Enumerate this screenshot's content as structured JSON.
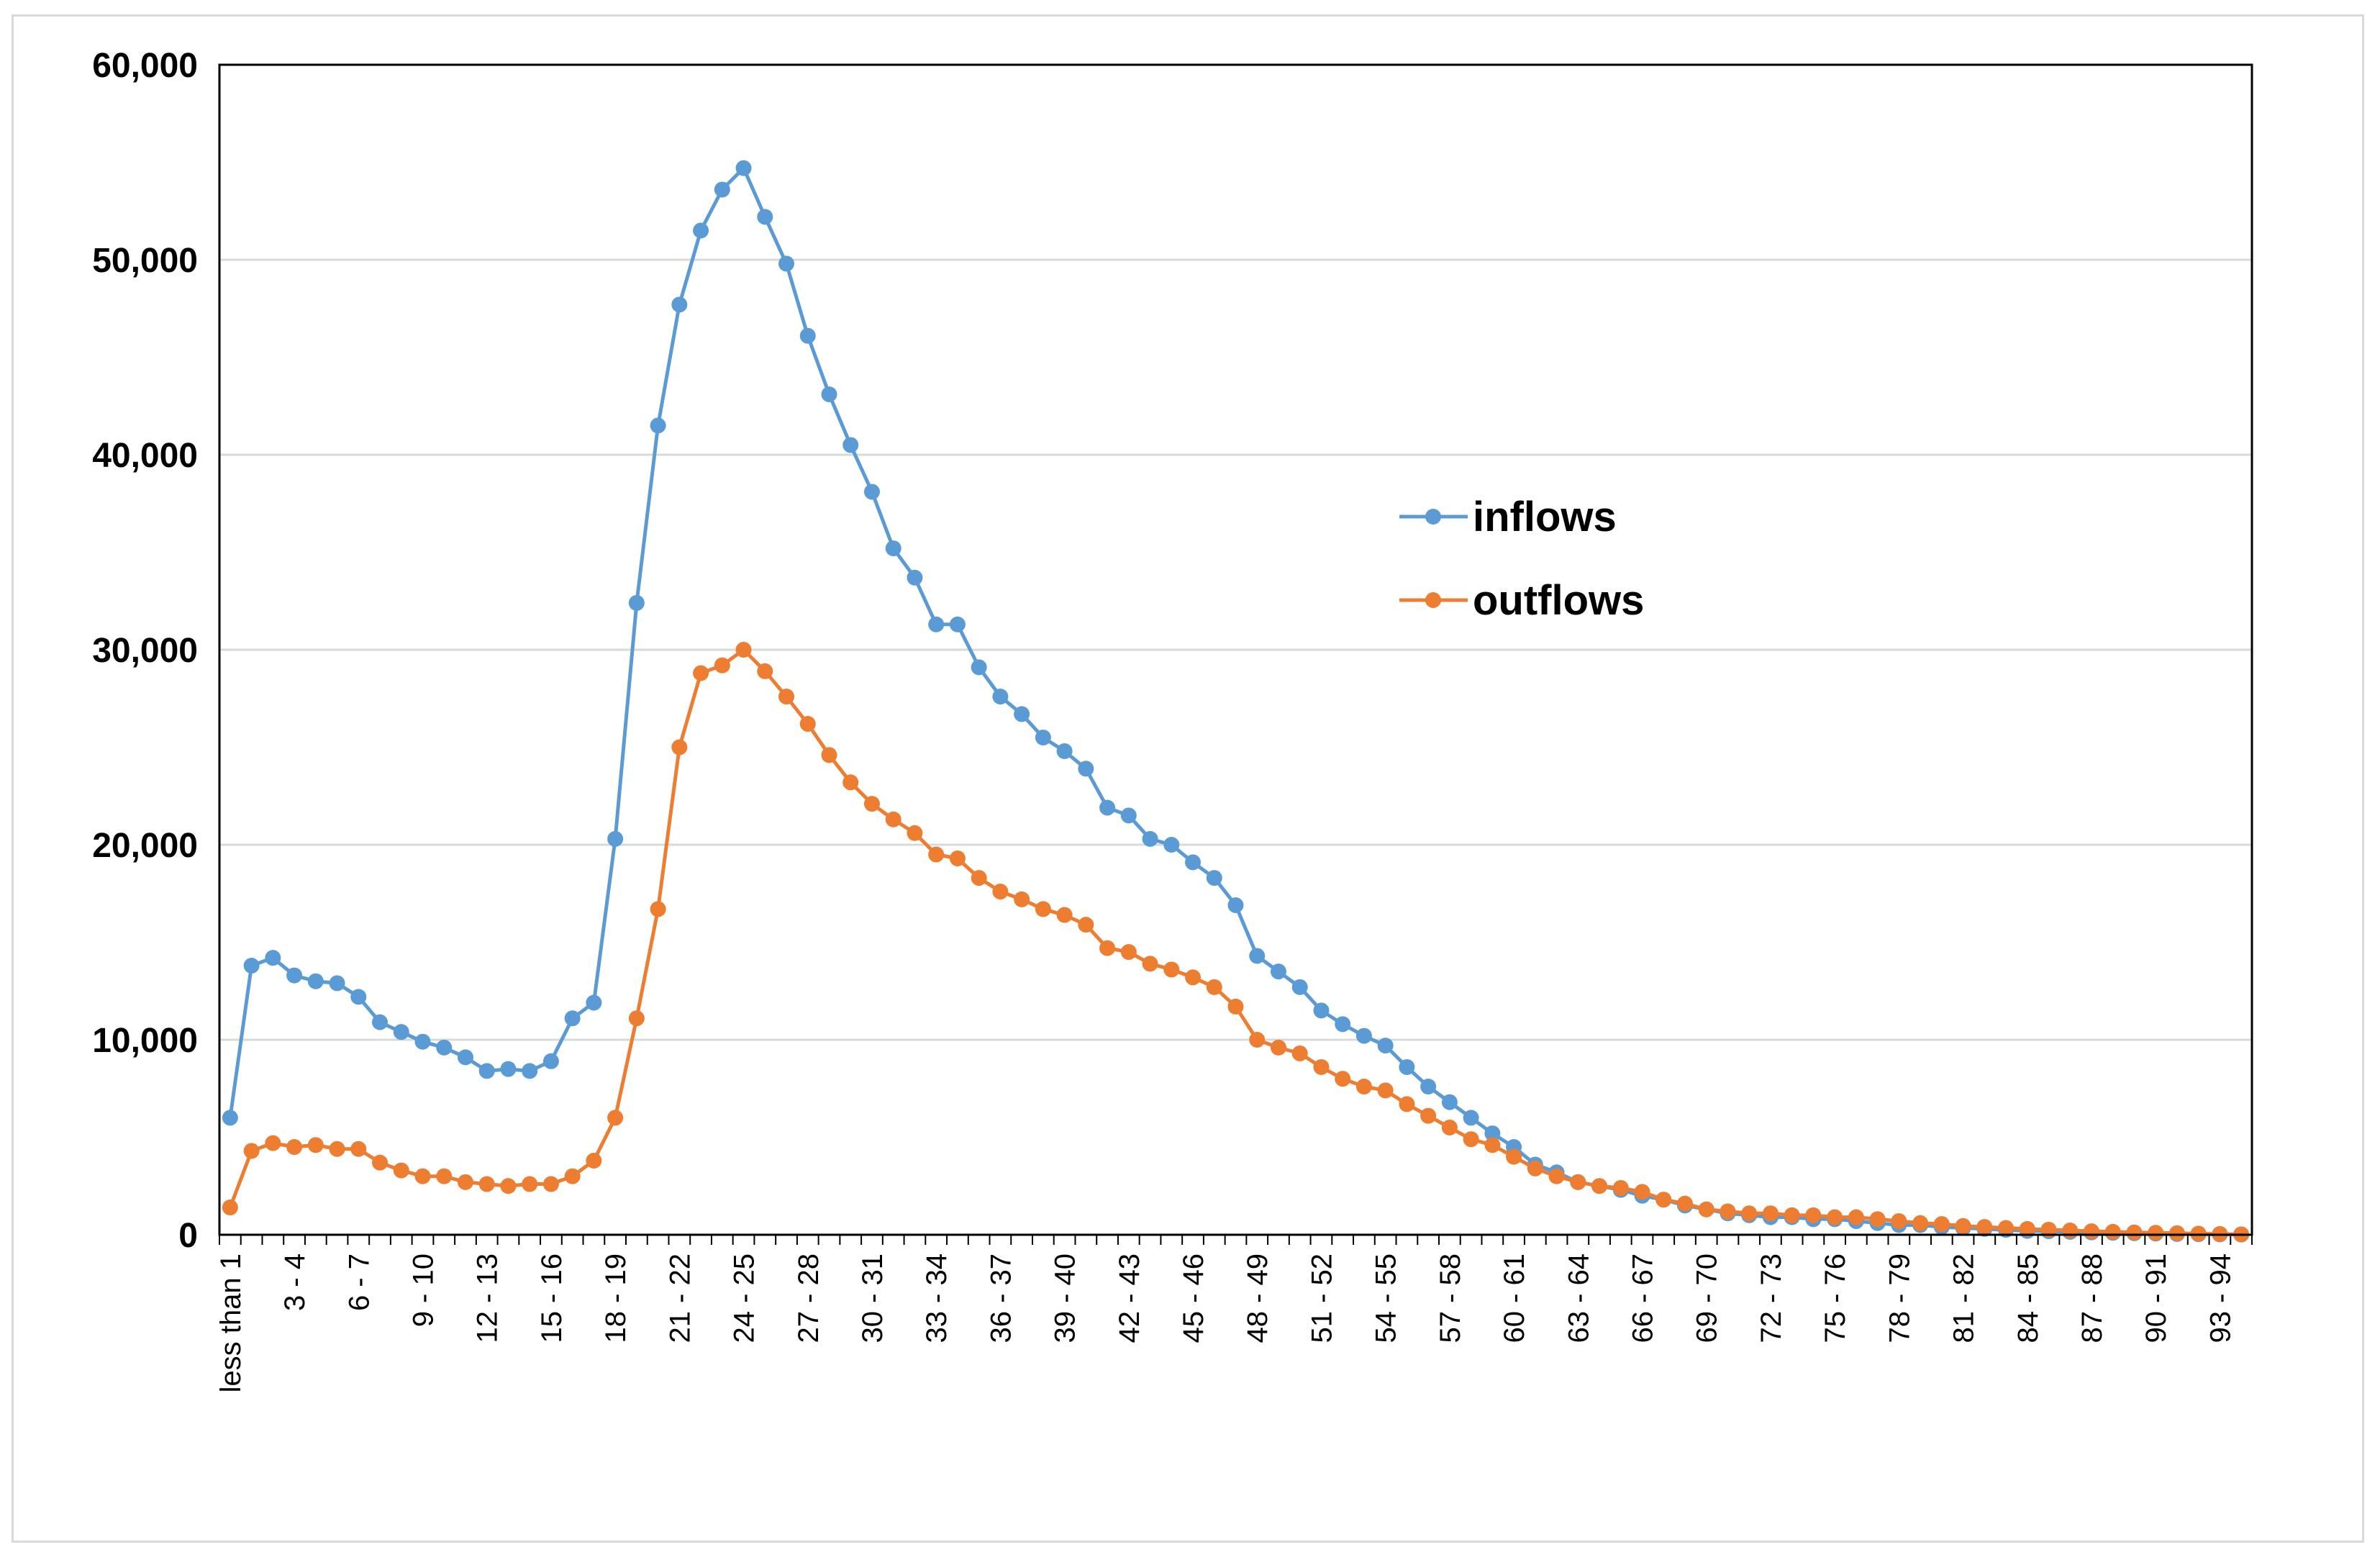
{
  "chart_data": {
    "type": "line",
    "title": "",
    "xlabel": "",
    "ylabel": "",
    "ylim": [
      0,
      60000
    ],
    "yticks": [
      0,
      10000,
      20000,
      30000,
      40000,
      50000,
      60000
    ],
    "ytick_labels": [
      "0",
      "10,000",
      "20,000",
      "30,000",
      "40,000",
      "50,000",
      "60,000"
    ],
    "grid": "horizontal",
    "legend_position": "upper-right-center",
    "categories": [
      "less than 1",
      "1 - 2",
      "2 - 3",
      "3 - 4",
      "4 - 5",
      "5 - 6",
      "6 - 7",
      "7 - 8",
      "8 - 9",
      "9 - 10",
      "10 - 11",
      "11 - 12",
      "12 - 13",
      "13 - 14",
      "14 - 15",
      "15 - 16",
      "16 - 17",
      "17 - 18",
      "18 - 19",
      "19 - 20",
      "20 - 21",
      "21 - 22",
      "22 - 23",
      "23 - 24",
      "24 - 25",
      "25 - 26",
      "26 - 27",
      "27 - 28",
      "28 - 29",
      "29 - 30",
      "30 - 31",
      "31 - 32",
      "32 - 33",
      "33 - 34",
      "34 - 35",
      "35 - 36",
      "36 - 37",
      "37 - 38",
      "38 - 39",
      "39 - 40",
      "40 - 41",
      "41 - 42",
      "42 - 43",
      "43 - 44",
      "44 - 45",
      "45 - 46",
      "46 - 47",
      "47 - 48",
      "48 - 49",
      "49 - 50",
      "50 - 51",
      "51 - 52",
      "52 - 53",
      "53 - 54",
      "54 - 55",
      "55 - 56",
      "56 - 57",
      "57 - 58",
      "58 - 59",
      "59 - 60",
      "60 - 61",
      "61 - 62",
      "62 - 63",
      "63 - 64",
      "64 - 65",
      "65 - 66",
      "66 - 67",
      "67 - 68",
      "68 - 69",
      "69 - 70",
      "70 - 71",
      "71 - 72",
      "72 - 73",
      "73 - 74",
      "74 - 75",
      "75 - 76",
      "76 - 77",
      "77 - 78",
      "78 - 79",
      "79 - 80",
      "80 - 81",
      "81 - 82",
      "82 - 83",
      "83 - 84",
      "84 - 85",
      "85 - 86",
      "86 - 87",
      "87 - 88",
      "88 - 89",
      "89 - 90",
      "90 - 91",
      "91 - 92",
      "92 - 93",
      "93 - 94",
      "94 - 95"
    ],
    "visible_tick_labels": [
      "less than 1",
      "3 - 4",
      "6 - 7",
      "9 - 10",
      "12 - 13",
      "15 - 16",
      "18 - 19",
      "21 - 22",
      "24 - 25",
      "27 - 28",
      "30 - 31",
      "33 - 34",
      "36 - 37",
      "39 - 40",
      "42 - 43",
      "45 - 46",
      "48 - 49",
      "51 - 52",
      "54 - 55",
      "57 - 58",
      "60 - 61",
      "63 - 64",
      "66 - 67",
      "69 - 70",
      "72 - 73",
      "75 - 76",
      "78 - 79",
      "81 - 82",
      "84 - 85",
      "87 - 88",
      "90 - 91",
      "93 - 94"
    ],
    "series": [
      {
        "name": "inflows",
        "color": "#5B9BD5",
        "values": [
          6000,
          13800,
          14200,
          13300,
          13000,
          12900,
          12200,
          10900,
          10400,
          9900,
          9600,
          9100,
          8400,
          8500,
          8400,
          8900,
          11100,
          11900,
          20300,
          32400,
          41500,
          47700,
          51500,
          53600,
          54700,
          52200,
          49800,
          46100,
          43100,
          40500,
          38100,
          35200,
          33700,
          31300,
          31300,
          29100,
          27600,
          26700,
          25500,
          24800,
          23900,
          21900,
          21500,
          20300,
          20000,
          19100,
          18300,
          16900,
          14300,
          13500,
          12700,
          11500,
          10800,
          10200,
          9700,
          8600,
          7600,
          6800,
          6000,
          5200,
          4500,
          3600,
          3200,
          2700,
          2500,
          2300,
          2000,
          1800,
          1500,
          1300,
          1100,
          1000,
          900,
          900,
          800,
          800,
          700,
          600,
          500,
          500,
          400,
          350,
          300,
          250,
          200,
          180,
          150,
          120,
          100,
          80,
          60,
          40,
          30,
          20,
          10
        ]
      },
      {
        "name": "outflows",
        "color": "#ED7D31",
        "values": [
          1400,
          4300,
          4700,
          4500,
          4600,
          4400,
          4400,
          3700,
          3300,
          3000,
          3000,
          2700,
          2600,
          2500,
          2600,
          2600,
          3000,
          3800,
          6000,
          11100,
          16700,
          25000,
          28800,
          29200,
          30000,
          28900,
          27600,
          26200,
          24600,
          23200,
          22100,
          21300,
          20600,
          19500,
          19300,
          18300,
          17600,
          17200,
          16700,
          16400,
          15900,
          14700,
          14500,
          13900,
          13600,
          13200,
          12700,
          11700,
          10000,
          9600,
          9300,
          8600,
          8000,
          7600,
          7400,
          6700,
          6100,
          5500,
          4900,
          4600,
          4000,
          3400,
          3000,
          2700,
          2500,
          2400,
          2200,
          1800,
          1600,
          1300,
          1200,
          1100,
          1100,
          1000,
          1000,
          900,
          900,
          800,
          700,
          600,
          550,
          450,
          400,
          350,
          300,
          260,
          220,
          180,
          150,
          120,
          100,
          80,
          60,
          40,
          20
        ]
      }
    ]
  }
}
